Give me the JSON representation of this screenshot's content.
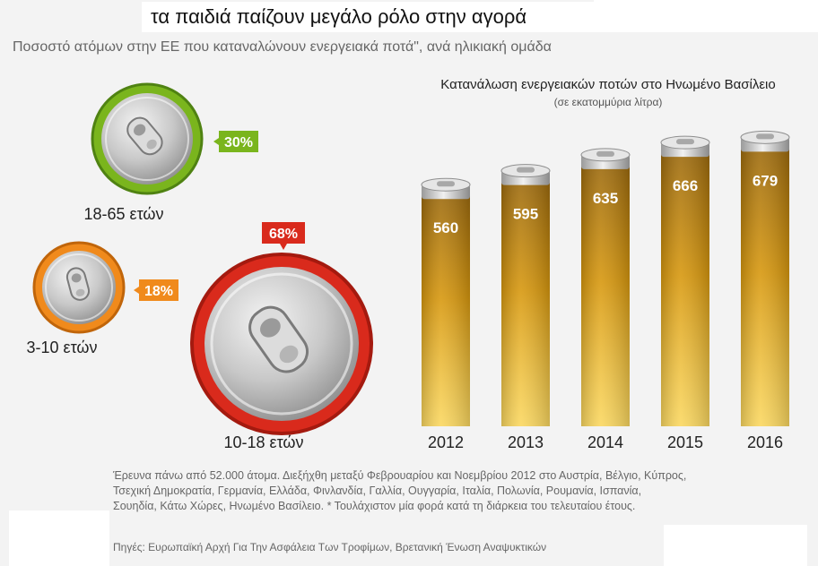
{
  "header": {
    "title": "τα παιδιά παίζουν μεγάλο ρόλο στην αγορά",
    "subtitle": "Ποσοστό ατόμων στην ΕΕ που καταναλώνουν ενεργειακά ποτά\", ανά ηλικιακή ομάδα"
  },
  "colors": {
    "green": "#7ab51d",
    "orange": "#f08a1c",
    "red": "#d92a1c",
    "bar_top": "#9c6a0e",
    "bar_bottom": "#fbd24a"
  },
  "age_groups": [
    {
      "label": "18-65 ετών",
      "percent": "30%",
      "color": "#7ab51d"
    },
    {
      "label": "3-10 ετών",
      "percent": "18%",
      "color": "#f08a1c"
    },
    {
      "label": "10-18 ετών",
      "percent": "68%",
      "color": "#d92a1c"
    }
  ],
  "chart_data": {
    "type": "bar",
    "title": "Κατανάλωση ενεργειακών ποτών στο Ηνωμένο Βασίλειο",
    "subtitle": "(σε εκατομμύρια λίτρα)",
    "categories": [
      "2012",
      "2013",
      "2014",
      "2015",
      "2016"
    ],
    "values": [
      560,
      595,
      635,
      666,
      679
    ],
    "xlabel": "",
    "ylabel": "",
    "ylim": [
      0,
      700
    ]
  },
  "footer": {
    "note": "Έρευνα πάνω από 52.000 άτομα. Διεξήχθη μεταξύ Φεβρουαρίου και Νοεμβρίου 2012 στο Αυστρία, Βέλγιο, Κύπρος, Τσεχική Δημοκρατία, Γερμανία, Ελλάδα, Φινλανδία, Γαλλία, Ουγγαρία, Ιταλία, Πολωνία, Ρουμανία, Ισπανία, Σουηδία, Κάτω Χώρες, Ηνωμένο Βασίλειο. * Τουλάχιστον μία φορά κατά τη διάρκεια του τελευταίου έτους.",
    "source": "Πηγές: Ευρωπαϊκή Αρχή Για Την Ασφάλεια Των Τροφίμων, Βρετανική Ένωση Αναψυκτικών"
  }
}
